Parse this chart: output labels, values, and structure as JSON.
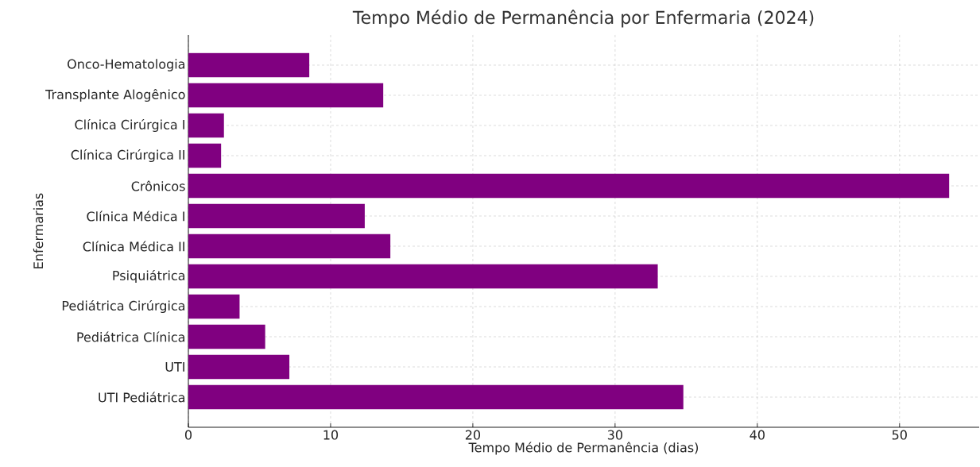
{
  "chart_data": {
    "type": "bar",
    "orientation": "horizontal",
    "title": "Tempo Médio de Permanência por Enfermaria (2024)",
    "xlabel": "Tempo Médio de Permanência (dias)",
    "ylabel": "Enfermarias",
    "categories": [
      "Onco-Hematologia",
      "Transplante Alogênico",
      "Clínica Cirúrgica I",
      "Clínica Cirúrgica II",
      "Crônicos",
      "Clínica Médica I",
      "Clínica Médica II",
      "Psiquiátrica",
      "Pediátrica Cirúrgica",
      "Pediátrica Clínica",
      "UTI",
      "UTI Pediátrica"
    ],
    "values": [
      8.5,
      13.7,
      2.5,
      2.3,
      53.5,
      12.4,
      14.2,
      33.0,
      3.6,
      5.4,
      7.1,
      34.8
    ],
    "color": "#800080",
    "xlim": [
      0,
      55.6
    ],
    "xticks": [
      0,
      10,
      20,
      30,
      40,
      50
    ],
    "grid": true
  }
}
